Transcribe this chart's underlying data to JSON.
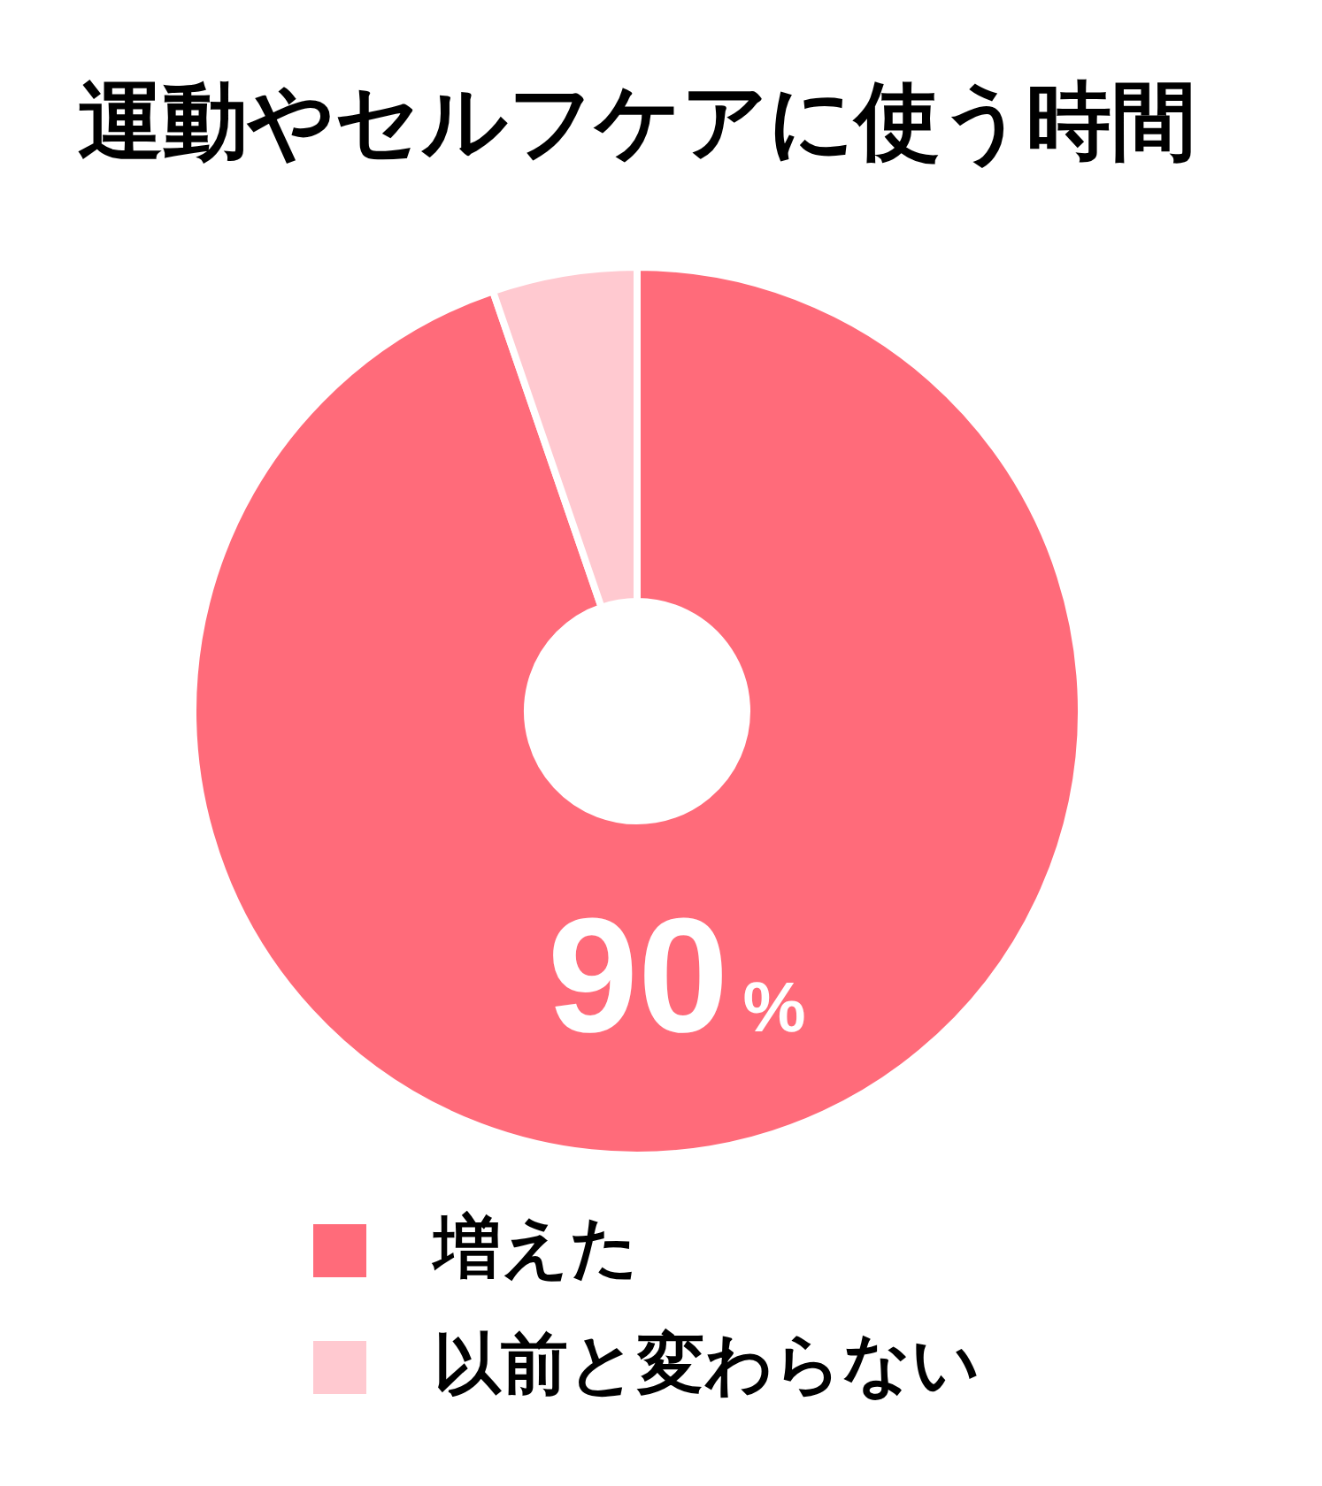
{
  "chart_data": {
    "type": "donut",
    "title": "運動やセルフケアに使う時間",
    "categories": [
      "増えた",
      "以前と変わらない"
    ],
    "values": [
      90,
      5
    ],
    "colors": [
      "#ff6b7a",
      "#ffc9d0"
    ],
    "value_labels": [
      "90%",
      null
    ],
    "legend": "bottom"
  }
}
